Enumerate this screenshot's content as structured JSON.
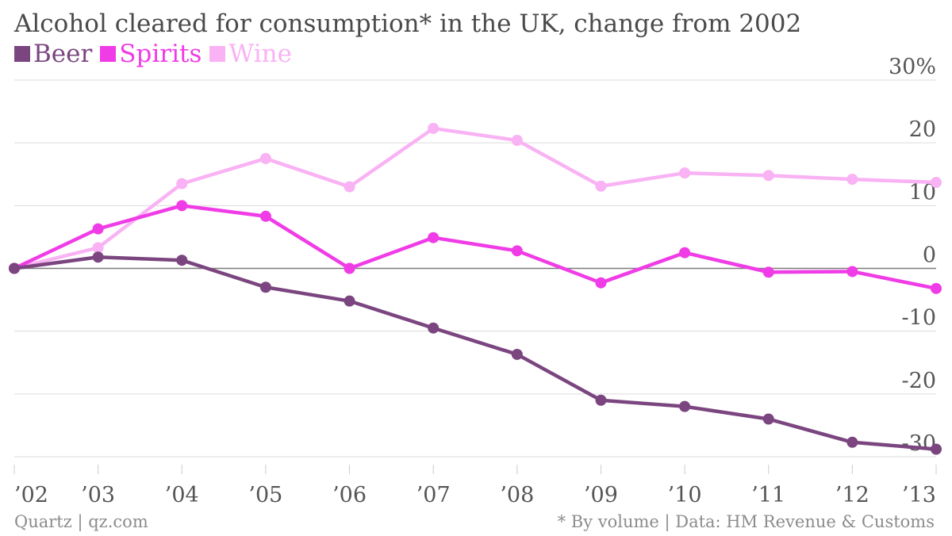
{
  "chart_data": {
    "type": "line",
    "title": "Alcohol cleared for consumption* in the UK, change from 2002",
    "categories": [
      "’02",
      "’03",
      "’04",
      "’05",
      "’06",
      "’07",
      "’08",
      "’09",
      "’10",
      "’11",
      "’12",
      "’13"
    ],
    "y_ticks": [
      "30%",
      "20",
      "10",
      "0",
      "-10",
      "-20",
      "-30"
    ],
    "y_tick_values": [
      30,
      20,
      10,
      0,
      -10,
      -20,
      -30
    ],
    "ylim": [
      -30,
      30
    ],
    "grid": true,
    "legend_position": "top-left",
    "series": [
      {
        "name": "Beer",
        "color": "#7b4580",
        "values": [
          0,
          1.8,
          1.3,
          -3.0,
          -5.2,
          -9.5,
          -13.7,
          -21.0,
          -22.0,
          -24.0,
          -27.7,
          -28.8
        ]
      },
      {
        "name": "Spirits",
        "color": "#f03ce6",
        "values": [
          0,
          6.3,
          10.0,
          8.3,
          0,
          4.9,
          2.8,
          -2.3,
          2.5,
          -0.6,
          -0.5,
          -3.2
        ]
      },
      {
        "name": "Wine",
        "color": "#f9b2f3",
        "values": [
          0,
          3.3,
          13.5,
          17.5,
          13.0,
          22.3,
          20.4,
          13.1,
          15.2,
          14.8,
          14.2,
          13.7
        ]
      }
    ]
  },
  "footer": {
    "source_left": "Quartz | qz.com",
    "source_right": "* By volume | Data: HM Revenue & Customs"
  }
}
